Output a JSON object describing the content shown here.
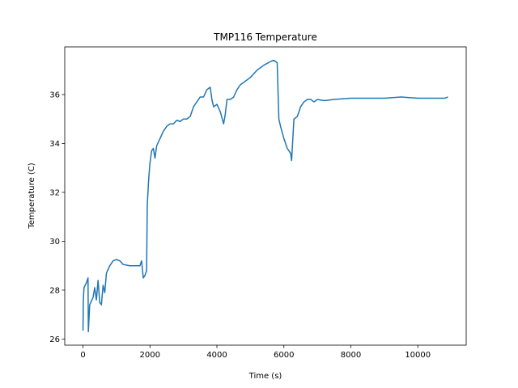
{
  "chart_data": {
    "type": "line",
    "title": "TMP116 Temperature",
    "x_label": "Time (s)",
    "y_label": "Temperature (C)",
    "x": [
      0,
      10,
      30,
      100,
      150,
      160,
      200,
      300,
      350,
      400,
      450,
      500,
      550,
      600,
      650,
      700,
      800,
      900,
      1000,
      1100,
      1200,
      1400,
      1600,
      1700,
      1750,
      1800,
      1850,
      1900,
      1920,
      1960,
      2000,
      2050,
      2100,
      2150,
      2200,
      2300,
      2400,
      2500,
      2600,
      2700,
      2800,
      2900,
      3000,
      3100,
      3200,
      3300,
      3400,
      3500,
      3600,
      3700,
      3800,
      3850,
      3900,
      4000,
      4100,
      4200,
      4250,
      4300,
      4400,
      4500,
      4600,
      4700,
      4800,
      5000,
      5200,
      5400,
      5600,
      5700,
      5800,
      5850,
      5900,
      6000,
      6100,
      6200,
      6230,
      6300,
      6400,
      6500,
      6600,
      6700,
      6800,
      6900,
      7000,
      7200,
      7500,
      8000,
      8500,
      9000,
      9500,
      10000,
      10500,
      10800,
      10900
    ],
    "series": [
      {
        "name": "TMP116",
        "color": "#1f77b4",
        "values": [
          26.35,
          27.6,
          28.1,
          28.3,
          28.5,
          26.3,
          27.4,
          27.7,
          28.1,
          27.6,
          28.4,
          27.5,
          27.4,
          28.2,
          27.9,
          28.7,
          29.0,
          29.2,
          29.25,
          29.2,
          29.05,
          29.0,
          29.0,
          29.0,
          29.2,
          28.5,
          28.6,
          28.8,
          31.5,
          32.5,
          33.2,
          33.7,
          33.8,
          33.4,
          33.9,
          34.2,
          34.5,
          34.7,
          34.8,
          34.8,
          34.95,
          34.9,
          35.0,
          35.0,
          35.1,
          35.5,
          35.7,
          35.9,
          35.9,
          36.2,
          36.3,
          35.8,
          35.5,
          35.6,
          35.3,
          34.8,
          35.2,
          35.8,
          35.8,
          35.9,
          36.2,
          36.4,
          36.5,
          36.7,
          37.0,
          37.2,
          37.35,
          37.4,
          37.3,
          35.0,
          34.7,
          34.2,
          33.8,
          33.6,
          33.3,
          35.0,
          35.1,
          35.5,
          35.7,
          35.8,
          35.8,
          35.7,
          35.8,
          35.75,
          35.8,
          35.85,
          35.85,
          35.85,
          35.9,
          35.85,
          35.85,
          35.85,
          35.9
        ]
      }
    ],
    "xlim": [
      -545,
      11445
    ],
    "ylim": [
      25.75,
      37.95
    ],
    "xticks": [
      0,
      2000,
      4000,
      6000,
      8000,
      10000
    ],
    "yticks": [
      26,
      28,
      30,
      32,
      34,
      36
    ]
  }
}
